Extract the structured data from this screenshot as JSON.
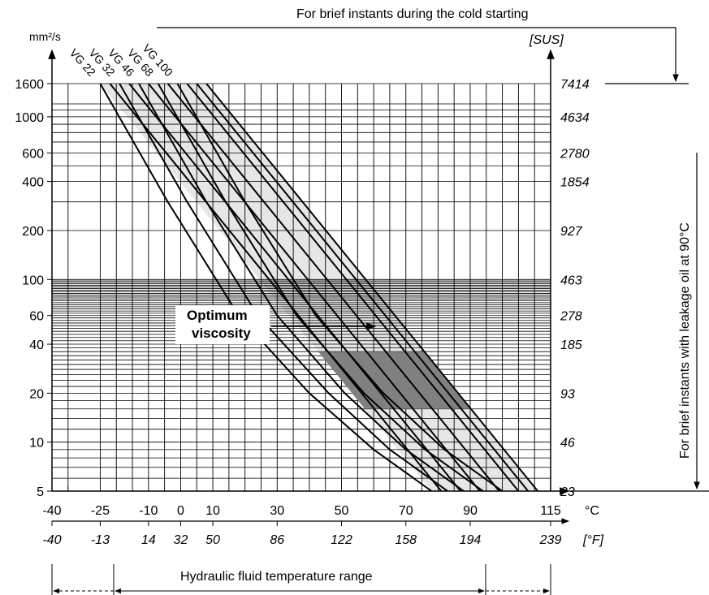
{
  "chart_data": {
    "type": "line",
    "title": "",
    "y_scale": "log-log (Ubbelohde viscosity-temperature)",
    "ylabel": "mm²/s",
    "ylabel_right": "[SUS]",
    "xlabel": "°C",
    "xlabel_secondary": "[°F]",
    "ylim": [
      5,
      1600
    ],
    "xlim": [
      -40,
      115
    ],
    "y_ticks": [
      1600,
      1000,
      600,
      400,
      200,
      100,
      60,
      40,
      20,
      10,
      5
    ],
    "y_ticks_sus": [
      "7414",
      "4634",
      "2780",
      "1854",
      "927",
      "463",
      "278",
      "185",
      "93",
      "46",
      "23"
    ],
    "x_ticks_c": [
      -40,
      -25,
      -10,
      0,
      10,
      30,
      50,
      70,
      90,
      115
    ],
    "x_ticks_f": [
      "-40",
      "-13",
      "14",
      "32",
      "50",
      "86",
      "122",
      "158",
      "194",
      "239"
    ],
    "series": [
      {
        "name": "VG 22",
        "points": [
          [
            -25,
            1600
          ],
          [
            -4,
            300
          ],
          [
            18,
            60
          ],
          [
            40,
            20
          ],
          [
            60,
            9
          ],
          [
            78,
            5
          ]
        ]
      },
      {
        "name": "VG 32",
        "points": [
          [
            -19,
            1600
          ],
          [
            2,
            300
          ],
          [
            24,
            60
          ],
          [
            46,
            20
          ],
          [
            65,
            9
          ],
          [
            83,
            5
          ]
        ]
      },
      {
        "name": "VG 46",
        "points": [
          [
            -13,
            1600
          ],
          [
            8,
            300
          ],
          [
            30,
            60
          ],
          [
            51,
            20
          ],
          [
            70,
            9
          ],
          [
            88,
            5
          ]
        ]
      },
      {
        "name": "VG 68",
        "points": [
          [
            -7,
            1600
          ],
          [
            14,
            300
          ],
          [
            36,
            60
          ],
          [
            57,
            20
          ],
          [
            76,
            9
          ],
          [
            94,
            5
          ]
        ]
      },
      {
        "name": "VG 100",
        "points": [
          [
            -1,
            1600
          ],
          [
            20,
            300
          ],
          [
            42,
            60
          ],
          [
            63,
            20
          ],
          [
            82,
            9
          ],
          [
            100,
            5
          ]
        ]
      }
    ],
    "unlabeled_lines_t1600": [
      -22,
      -16,
      -10,
      -4,
      2,
      5,
      8
    ],
    "optimum_band": [
      16,
      36
    ],
    "annotations": {
      "optimum": [
        "Optimum",
        "viscosity"
      ],
      "cold_start": "For brief instants during the cold starting",
      "leakage": "For brief instants with leakage oil at 90°C",
      "range": "Hydraulic fluid temperature range"
    }
  }
}
